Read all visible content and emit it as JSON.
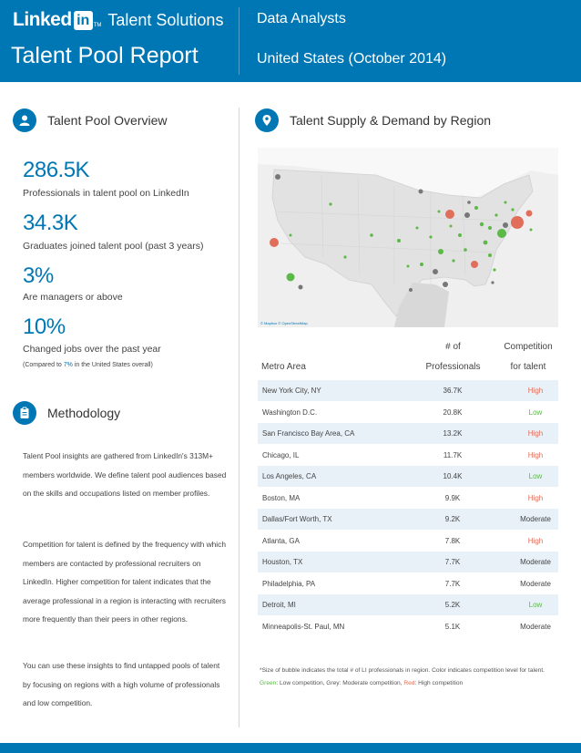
{
  "header": {
    "logo_word": "Linked",
    "logo_in": "in",
    "logo_tm": "TM",
    "logo_sub": "Talent Solutions",
    "report_title": "Talent Pool Report",
    "job_title": "Data Analysts",
    "region": "United States (October 2014)"
  },
  "overview": {
    "heading": "Talent Pool Overview",
    "icon": "person-icon",
    "stats": [
      {
        "value": "286.5K",
        "caption": "Professionals in talent pool on LinkedIn"
      },
      {
        "value": "34.3K",
        "caption": "Graduates joined talent pool (past 3 years)"
      },
      {
        "value": "3%",
        "caption": "Are managers or above"
      },
      {
        "value": "10%",
        "caption": "Changed jobs over the past year"
      }
    ],
    "note_prefix": "(Compared to ",
    "note_value": "7%",
    "note_suffix": " in the United States overall)"
  },
  "methodology": {
    "heading": "Methodology",
    "icon": "clipboard-icon",
    "p1": "Talent Pool insights are gathered from LinkedIn's 313M+ members worldwide. We define talent pool audiences based on the skills and occupations listed on member profiles.",
    "p2": "Competition for talent is defined by the frequency with which members are contacted by professional recruiters on LinkedIn. Higher competition for talent indicates that the average professional in a region is interacting with recruiters more frequently than their peers in other regions.",
    "p3": "You can use these insights to find untapped pools of talent by focusing on regions with a high volume of professionals and low competition."
  },
  "supply_demand": {
    "heading": "Talent Supply & Demand by Region",
    "icon": "map-pin-icon",
    "map_credit": "© Mapbox © OpenStreetMap",
    "colors": {
      "low": "#5cb947",
      "moderate": "#777777",
      "high": "#e06e5b"
    }
  },
  "table": {
    "col_metro": "Metro Area",
    "col_num_1": "# of",
    "col_num_2": "Professionals",
    "col_comp_1": "Competition",
    "col_comp_2": "for talent",
    "rows": [
      {
        "metro": "New York City, NY",
        "num": "36.7K",
        "comp": "High"
      },
      {
        "metro": "Washington D.C.",
        "num": "20.8K",
        "comp": "Low"
      },
      {
        "metro": "San Francisco Bay Area, CA",
        "num": "13.2K",
        "comp": "High"
      },
      {
        "metro": "Chicago, IL",
        "num": "11.7K",
        "comp": "High"
      },
      {
        "metro": "Los Angeles, CA",
        "num": "10.4K",
        "comp": "Low"
      },
      {
        "metro": "Boston, MA",
        "num": "9.9K",
        "comp": "High"
      },
      {
        "metro": "Dallas/Fort Worth, TX",
        "num": "9.2K",
        "comp": "Moderate"
      },
      {
        "metro": "Atlanta, GA",
        "num": "7.8K",
        "comp": "High"
      },
      {
        "metro": "Houston, TX",
        "num": "7.7K",
        "comp": "Moderate"
      },
      {
        "metro": "Philadelphia, PA",
        "num": "7.7K",
        "comp": "Moderate"
      },
      {
        "metro": "Detroit, MI",
        "num": "5.2K",
        "comp": "Low"
      },
      {
        "metro": "Minneapolis-St. Paul, MN",
        "num": "5.1K",
        "comp": "Moderate"
      }
    ]
  },
  "footnote": {
    "part1": "*Size of bubble indicates the total # of LI professionals in region. Color indicates competition level for talent. ",
    "green": "Green",
    "part2": ": Low competition, Grey: Moderate competition, ",
    "red": "Red",
    "part3": ": High competition"
  }
}
